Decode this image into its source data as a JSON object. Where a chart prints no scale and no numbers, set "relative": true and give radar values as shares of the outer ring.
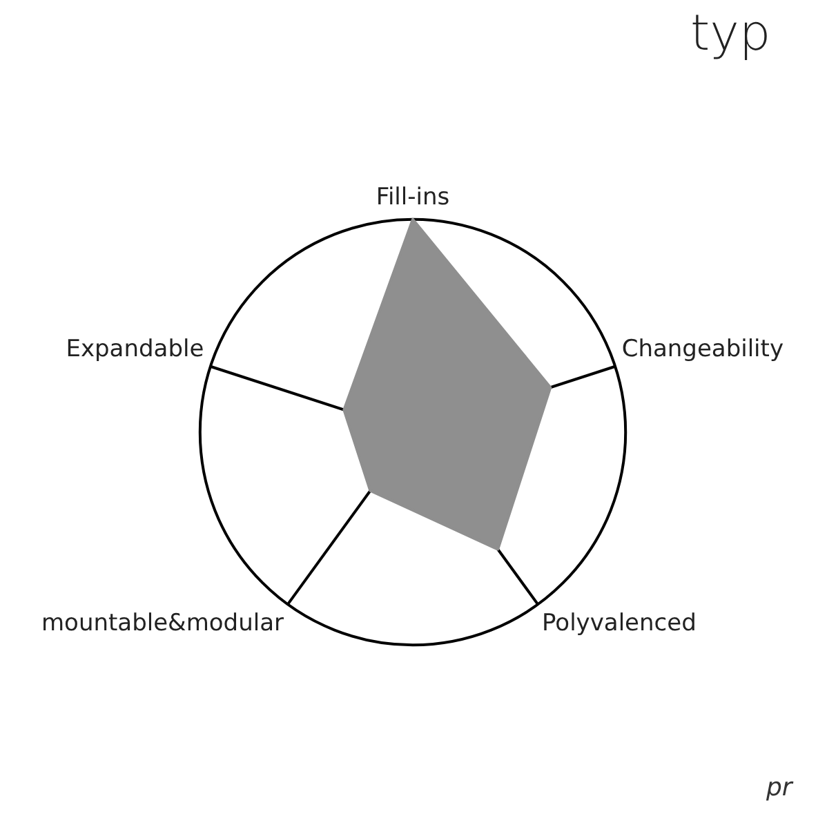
{
  "chart_data": {
    "type": "radar",
    "relative": true,
    "title": "typ",
    "annotations": [
      "pr"
    ],
    "categories": [
      "Fill-ins",
      "Changeability",
      "Polyvalenced",
      "mountable&modular",
      "Expandable"
    ],
    "values": [
      1,
      0.68,
      0.68,
      0.34,
      0.34
    ],
    "color": "#8f8f8f"
  }
}
